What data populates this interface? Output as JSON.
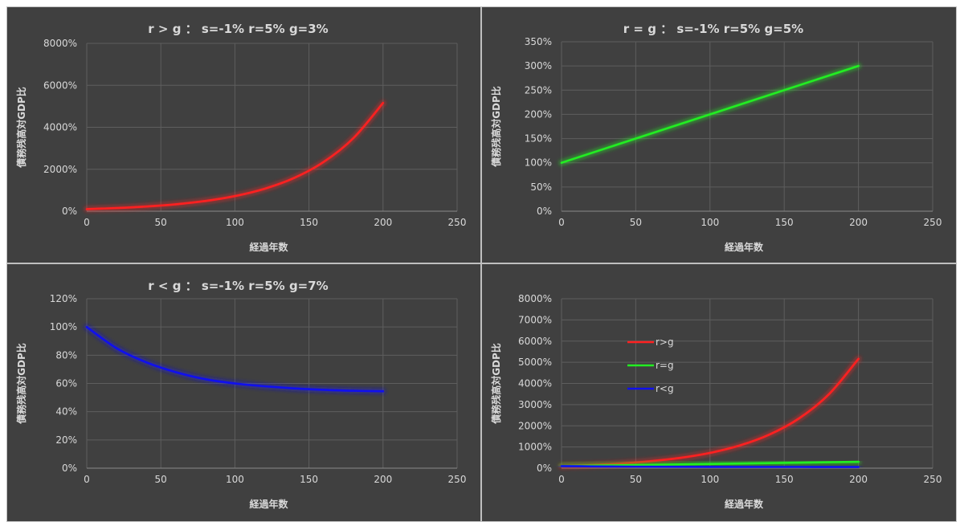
{
  "chart_data": [
    {
      "type": "line",
      "title": "r > g ： s=-1%  r=5%  g=3%",
      "xlabel": "経過年数",
      "ylabel": "債務残高対GDP比",
      "xlim": [
        0,
        250
      ],
      "xticks": [
        0,
        50,
        100,
        150,
        200,
        250
      ],
      "ylim": [
        0,
        80
      ],
      "yticks": [
        0,
        20,
        40,
        60,
        80
      ],
      "ytick_labels": [
        "0%",
        "2000%",
        "4000%",
        "6000%",
        "8000%"
      ],
      "grid": true,
      "series": [
        {
          "color": "#ff2020",
          "x": [
            0,
            20,
            40,
            60,
            80,
            100,
            120,
            140,
            160,
            180,
            200
          ],
          "y": [
            1.0,
            1.49,
            2.21,
            3.28,
            4.86,
            7.21,
            10.69,
            15.84,
            23.49,
            34.82,
            51.61
          ]
        }
      ]
    },
    {
      "type": "line",
      "title": "r = g ： s=-1%  r=5%  g=5%",
      "xlabel": "経過年数",
      "ylabel": "債務残高対GDP比",
      "xlim": [
        0,
        250
      ],
      "xticks": [
        0,
        50,
        100,
        150,
        200,
        250
      ],
      "ylim": [
        0,
        3.5
      ],
      "yticks": [
        0,
        0.5,
        1,
        1.5,
        2,
        2.5,
        3,
        3.5
      ],
      "ytick_labels": [
        "0%",
        "50%",
        "100%",
        "150%",
        "200%",
        "250%",
        "300%",
        "350%"
      ],
      "grid": true,
      "series": [
        {
          "color": "#22ee22",
          "x": [
            0,
            200
          ],
          "y": [
            1.0,
            3.0
          ]
        }
      ]
    },
    {
      "type": "line",
      "title": "r < g ： s=-1%  r=5%  g=7%",
      "xlabel": "経過年数",
      "ylabel": "債務残高対GDP比",
      "xlim": [
        0,
        250
      ],
      "xticks": [
        0,
        50,
        100,
        150,
        200,
        250
      ],
      "ylim": [
        0,
        1.2
      ],
      "yticks": [
        0,
        0.2,
        0.4,
        0.6,
        0.8,
        1.0,
        1.2
      ],
      "ytick_labels": [
        "0%",
        "20%",
        "40%",
        "60%",
        "80%",
        "100%",
        "120%"
      ],
      "grid": true,
      "series": [
        {
          "color": "#1010ee",
          "x": [
            0,
            20,
            40,
            60,
            80,
            100,
            120,
            140,
            160,
            180,
            200
          ],
          "y": [
            1.0,
            0.85,
            0.75,
            0.68,
            0.63,
            0.6,
            0.58,
            0.565,
            0.555,
            0.548,
            0.545
          ]
        }
      ]
    },
    {
      "type": "line",
      "title": "",
      "xlabel": "経過年数",
      "ylabel": "債務残高対GDP比",
      "xlim": [
        0,
        250
      ],
      "xticks": [
        0,
        50,
        100,
        150,
        200,
        250
      ],
      "ylim": [
        0,
        80
      ],
      "yticks": [
        0,
        10,
        20,
        30,
        40,
        50,
        60,
        70,
        80
      ],
      "ytick_labels": [
        "0%",
        "1000%",
        "2000%",
        "3000%",
        "4000%",
        "5000%",
        "6000%",
        "7000%",
        "8000%"
      ],
      "grid": true,
      "legend": "upper-left-inside",
      "series": [
        {
          "name": "r>g",
          "color": "#ff2020",
          "x": [
            0,
            20,
            40,
            60,
            80,
            100,
            120,
            140,
            160,
            180,
            200
          ],
          "y": [
            1.0,
            1.49,
            2.21,
            3.28,
            4.86,
            7.21,
            10.69,
            15.84,
            23.49,
            34.82,
            51.61
          ]
        },
        {
          "name": "r=g",
          "color": "#22ee22",
          "x": [
            0,
            200
          ],
          "y": [
            1.0,
            3.0
          ]
        },
        {
          "name": "r<g",
          "color": "#1010ee",
          "x": [
            0,
            20,
            40,
            60,
            80,
            100,
            120,
            140,
            160,
            180,
            200
          ],
          "y": [
            1.0,
            0.85,
            0.75,
            0.68,
            0.63,
            0.6,
            0.58,
            0.565,
            0.555,
            0.548,
            0.545
          ]
        }
      ]
    }
  ]
}
